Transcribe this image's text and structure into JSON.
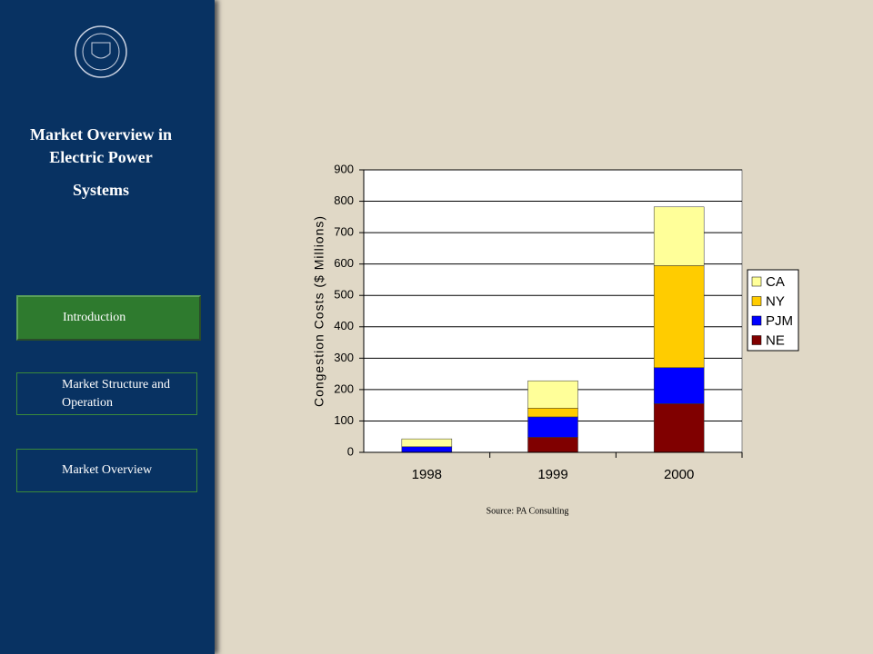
{
  "sidebar": {
    "title_lines": [
      "Market Overview in",
      "Electric Power",
      "Systems"
    ],
    "nav": [
      "Introduction",
      "Market Structure and Operation",
      "Market Overview"
    ]
  },
  "chart_data": {
    "type": "stacked_bar",
    "y_label": "Congestion Costs ($ Millions)",
    "categories": [
      "1998",
      "1999",
      "2000"
    ],
    "series": [
      {
        "name": "NE",
        "color": "#800000",
        "values": [
          0,
          48,
          155
        ]
      },
      {
        "name": "PJM",
        "color": "#0000ff",
        "values": [
          18,
          65,
          115
        ]
      },
      {
        "name": "NY",
        "color": "#ffcc00",
        "values": [
          0,
          28,
          325
        ]
      },
      {
        "name": "CA",
        "color": "#ffff99",
        "values": [
          25,
          87,
          187
        ]
      }
    ],
    "ylim": [
      0,
      900
    ],
    "yticks": [
      0,
      100,
      200,
      300,
      400,
      500,
      600,
      700,
      800,
      900
    ],
    "grid": true,
    "legend": "right",
    "source": "Source: PA Consulting"
  }
}
